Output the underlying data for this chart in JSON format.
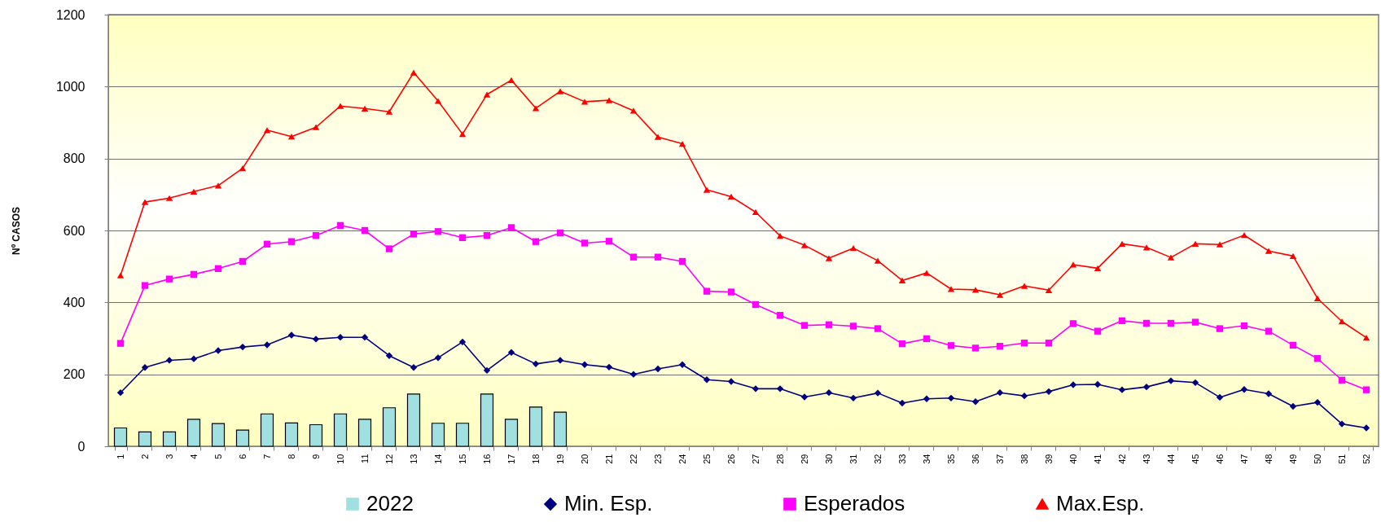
{
  "chart_data": {
    "type": "line",
    "categories": [
      "1",
      "2",
      "3",
      "4",
      "5",
      "6",
      "7",
      "8",
      "9",
      "10",
      "11",
      "12",
      "13",
      "14",
      "15",
      "16",
      "17",
      "18",
      "19",
      "20",
      "21",
      "22",
      "23",
      "24",
      "25",
      "26",
      "27",
      "28",
      "29",
      "30",
      "31",
      "32",
      "33",
      "34",
      "35",
      "36",
      "37",
      "38",
      "39",
      "40",
      "41",
      "42",
      "43",
      "44",
      "45",
      "46",
      "47",
      "48",
      "49",
      "50",
      "51",
      "52"
    ],
    "ylabel": "Nº CASOS",
    "ylim": [
      0,
      1200
    ],
    "yticks": [
      0,
      200,
      400,
      600,
      800,
      1000,
      1200
    ],
    "grid": "y",
    "legend": "bottom",
    "line_style": "solid",
    "series": [
      {
        "name": "2022",
        "type": "bar",
        "color": "#a0e0e0",
        "values": [
          51,
          40,
          40,
          75,
          63,
          45,
          90,
          65,
          60,
          90,
          75,
          107,
          145,
          64,
          64,
          145,
          75,
          109,
          95,
          null,
          null,
          null,
          null,
          null,
          null,
          null,
          null,
          null,
          null,
          null,
          null,
          null,
          null,
          null,
          null,
          null,
          null,
          null,
          null,
          null,
          null,
          null,
          null,
          null,
          null,
          null,
          null,
          null,
          null,
          null,
          null,
          null
        ]
      },
      {
        "name": "Min. Esp.",
        "color": "#000080",
        "marker": "diamond",
        "values": [
          149,
          219,
          239,
          243,
          266,
          276,
          282,
          309,
          298,
          303,
          303,
          252,
          219,
          246,
          290,
          211,
          261,
          229,
          239,
          227,
          220,
          200,
          215,
          227,
          185,
          180,
          160,
          160,
          137,
          149,
          134,
          148,
          120,
          132,
          134,
          124,
          149,
          140,
          152,
          171,
          172,
          157,
          165,
          182,
          177,
          136,
          158,
          146,
          111,
          122,
          62,
          51
        ]
      },
      {
        "name": "Esperados",
        "color": "#ff00ff",
        "marker": "square",
        "values": [
          286,
          447,
          465,
          478,
          494,
          514,
          562,
          569,
          586,
          614,
          600,
          549,
          590,
          597,
          580,
          586,
          608,
          569,
          593,
          565,
          570,
          526,
          526,
          514,
          431,
          429,
          394,
          364,
          336,
          338,
          334,
          327,
          285,
          299,
          280,
          273,
          278,
          287,
          287,
          341,
          320,
          349,
          342,
          342,
          345,
          327,
          335,
          320,
          281,
          244,
          184,
          157
        ]
      },
      {
        "name": "Max.Esp.",
        "color": "#ff0000",
        "marker": "triangle",
        "values": [
          475,
          679,
          690,
          708,
          725,
          773,
          879,
          861,
          887,
          946,
          939,
          930,
          1039,
          960,
          868,
          978,
          1018,
          940,
          987,
          958,
          962,
          933,
          860,
          841,
          713,
          694,
          651,
          585,
          559,
          523,
          551,
          516,
          461,
          482,
          437,
          435,
          421,
          446,
          434,
          505,
          495,
          563,
          553,
          525,
          563,
          561,
          587,
          543,
          529,
          411,
          347,
          302
        ]
      }
    ]
  }
}
